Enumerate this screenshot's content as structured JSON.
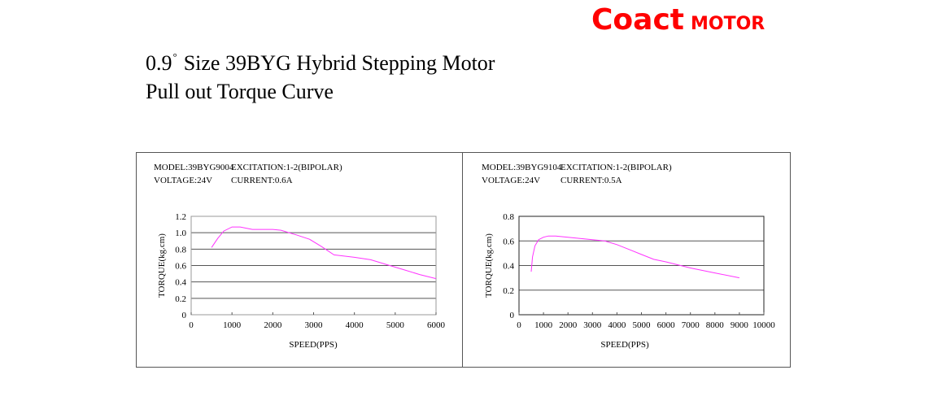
{
  "brand": {
    "name": "Coact",
    "suffix": "MOTOR",
    "color": "#ff0000"
  },
  "title": {
    "line1_prefix": "0.9",
    "degree": "°",
    "line1_rest": "Size 39BYG Hybrid Stepping Motor",
    "line2": "Pull out Torque Curve"
  },
  "curve_color": "#ff33ff",
  "chart_data": [
    {
      "type": "line",
      "info": {
        "model": "MODEL:39BYG9004",
        "excitation": "EXCITATION:1-2(BIPOLAR)",
        "voltage": "VOLTAGE:24V",
        "current": "CURRENT:0.6A"
      },
      "xlabel": "SPEED(PPS)",
      "ylabel": "TORQUE(kg.cm)",
      "xlim": [
        0,
        6000
      ],
      "ylim": [
        0,
        1.2
      ],
      "xticks": [
        "0",
        "1000",
        "2000",
        "3000",
        "4000",
        "5000",
        "6000"
      ],
      "yticks": [
        "0",
        "0.2",
        "0.4",
        "0.6",
        "0.8",
        "1.0",
        "1.2"
      ],
      "grid": "horizontal",
      "series": [
        {
          "x": [
            500,
            650,
            800,
            1000,
            1200,
            1500,
            2000,
            2200,
            2600,
            2900,
            3200,
            3500,
            4000,
            4400,
            4800,
            5200,
            5600,
            6000
          ],
          "y": [
            0.82,
            0.93,
            1.02,
            1.07,
            1.07,
            1.04,
            1.04,
            1.03,
            0.97,
            0.92,
            0.83,
            0.73,
            0.7,
            0.67,
            0.61,
            0.55,
            0.49,
            0.44
          ]
        }
      ]
    },
    {
      "type": "line",
      "info": {
        "model": "MODEL:39BYG9104",
        "excitation": "EXCITATION:1-2(BIPOLAR)",
        "voltage": "VOLTAGE:24V",
        "current": "CURRENT:0.5A"
      },
      "xlabel": "SPEED(PPS)",
      "ylabel": "TORQUE(kg.cm)",
      "xlim": [
        0,
        10000
      ],
      "ylim": [
        0,
        0.8
      ],
      "xticks": [
        "0",
        "1000",
        "2000",
        "3000",
        "4000",
        "5000",
        "6000",
        "7000",
        "8000",
        "9000",
        "10000"
      ],
      "yticks": [
        "0",
        "0.2",
        "0.4",
        "0.6",
        "0.8"
      ],
      "grid": "horizontal",
      "series": [
        {
          "x": [
            500,
            550,
            650,
            800,
            1000,
            1200,
            1500,
            2000,
            2500,
            3000,
            3500,
            4000,
            4500,
            5000,
            5500,
            6000,
            7000,
            8000,
            9000
          ],
          "y": [
            0.35,
            0.47,
            0.56,
            0.61,
            0.63,
            0.64,
            0.64,
            0.63,
            0.62,
            0.61,
            0.6,
            0.57,
            0.53,
            0.49,
            0.45,
            0.43,
            0.38,
            0.34,
            0.3
          ]
        }
      ]
    }
  ]
}
